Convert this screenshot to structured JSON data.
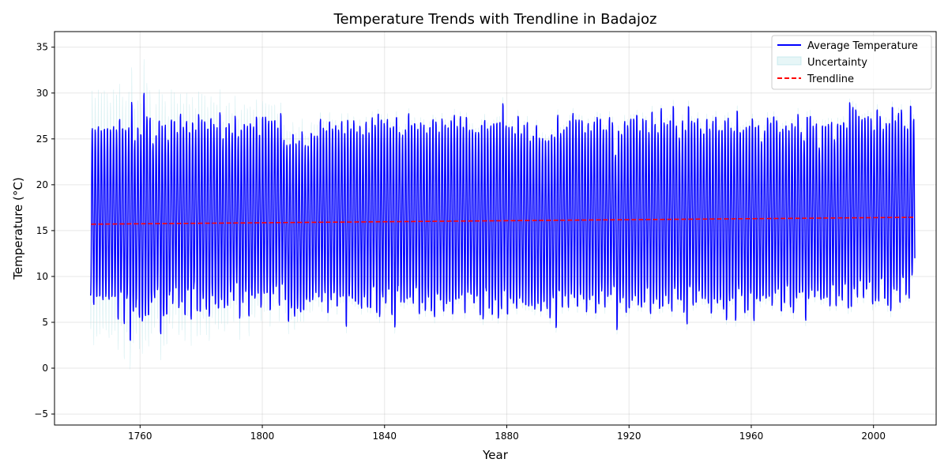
{
  "chart_data": {
    "type": "line",
    "title": "Temperature Trends with Trendline in Badajoz",
    "xlabel": "Year",
    "ylabel": "Temperature (°C)",
    "xlim": [
      1732,
      2020.5
    ],
    "ylim": [
      -6.2,
      36.7
    ],
    "x_ticks": [
      1760,
      1800,
      1840,
      1880,
      1920,
      1960,
      2000
    ],
    "y_ticks": [
      -5,
      0,
      5,
      10,
      15,
      20,
      25,
      30,
      35
    ],
    "x_tick_labels": [
      "1760",
      "1800",
      "1840",
      "1880",
      "1920",
      "1960",
      "2000"
    ],
    "y_tick_labels": [
      "−5",
      "0",
      "5",
      "10",
      "15",
      "20",
      "25",
      "30",
      "35"
    ],
    "grid": true,
    "legend_position": "top-right",
    "series": [
      {
        "name": "Average Temperature",
        "style": "line",
        "color": "#0000ff",
        "description_of_data": "monthly mean temperature, oscillating seasonally",
        "x_start": 1743.8,
        "x_end": 2013.6,
        "yearly_max_approx": [
          26.2,
          26.3,
          26.3,
          26.2,
          26.3,
          26.3,
          26.3,
          26.3,
          26.3,
          27.3,
          26.4,
          26.3,
          26.2,
          29.4,
          24.9,
          26.5,
          25.8,
          30.1,
          27.8,
          27.3,
          24.8,
          25.6,
          27.1,
          26.8,
          26.5,
          25.2,
          27.2,
          27.2,
          26.0,
          27.7,
          26.6,
          27.0,
          26.0,
          27.1,
          26.0,
          28.0,
          27.1,
          27.2,
          26.4,
          27.4,
          26.9,
          26.2,
          28.2,
          25.2,
          26.5,
          27.0,
          25.6,
          27.8,
          25.3,
          26.3,
          26.9,
          26.4,
          27.0,
          26.3,
          27.7,
          25.7,
          27.5,
          27.7,
          26.9,
          27.3,
          27.2,
          26.4,
          28.1,
          24.8,
          24.6,
          24.5,
          25.8,
          24.8,
          24.8,
          26.1,
          24.3,
          24.5,
          25.9,
          25.4,
          25.6,
          27.1,
          26.5,
          26.1,
          27.1,
          26.4,
          26.4,
          26.3,
          27.0,
          25.9,
          27.4,
          26.1,
          27.3,
          25.8,
          26.7,
          25.8,
          26.9,
          26.0,
          27.3,
          26.8,
          28.0,
          27.3,
          27.0,
          27.1,
          26.5,
          26.5,
          27.7,
          26.0,
          25.4,
          26.3,
          27.8,
          26.8,
          27.0,
          26.1,
          27.1,
          26.5,
          26.0,
          26.5,
          27.3,
          27.2,
          25.7,
          27.5,
          26.7,
          26.5,
          27.3,
          27.6,
          26.7,
          27.5,
          26.6,
          27.7,
          26.0,
          26.3,
          25.7,
          26.0,
          26.8,
          27.2,
          26.4,
          26.4,
          27.0,
          26.9,
          27.1,
          29.2,
          26.4,
          26.6,
          26.4,
          25.9,
          27.8,
          25.6,
          26.8,
          26.8,
          25.1,
          25.6,
          26.6,
          25.4,
          25.0,
          25.1,
          25.0,
          25.7,
          25.5,
          27.6,
          25.9,
          26.1,
          26.6,
          27.3,
          27.8,
          27.4,
          27.1,
          27.3,
          26.0,
          26.8,
          26.2,
          26.8,
          27.7,
          27.4,
          26.2,
          26.3,
          27.3,
          27.1,
          23.3,
          26.2,
          25.8,
          26.9,
          26.8,
          27.2,
          27.5,
          27.9,
          26.0,
          27.5,
          27.0,
          26.0,
          28.2,
          26.8,
          26.0,
          28.3,
          27.1,
          26.7,
          27.3,
          28.9,
          26.4,
          25.4,
          27.0,
          26.3,
          28.9,
          27.0,
          27.1,
          27.2,
          26.4,
          25.8,
          27.3,
          26.4,
          26.9,
          27.7,
          26.1,
          26.2,
          27.3,
          27.3,
          26.5,
          25.9,
          28.4,
          26.0,
          26.0,
          26.6,
          26.4,
          27.5,
          26.6,
          26.6,
          25.0,
          25.8,
          27.6,
          26.9,
          27.7,
          27.3,
          25.7,
          26.4,
          26.5,
          26.2,
          27.0,
          26.4,
          28.0,
          25.7,
          25.1,
          27.7,
          27.6,
          26.7,
          26.6,
          24.3,
          26.6,
          26.6,
          26.9,
          26.8,
          25.2,
          26.7,
          26.8,
          27.1,
          26.2,
          29.3,
          28.5,
          28.5,
          27.8,
          27.2,
          27.6,
          27.4,
          27.5,
          26.2,
          28.4,
          27.8,
          26.0,
          27.0,
          26.8,
          28.8,
          27.3,
          27.8,
          28.5,
          26.4,
          26.4,
          28.9,
          27.2,
          27.3,
          28.1
        ],
        "yearly_min_approx": [
          7.6,
          6.9,
          7.5,
          7.5,
          7.5,
          7.5,
          7.5,
          7.5,
          7.5,
          5.7,
          7.5,
          4.8,
          7.5,
          4.3,
          3.7,
          7.8,
          5.2,
          6.9,
          4.4,
          5.2,
          5.6,
          8.1,
          9.0,
          3.5,
          5.2,
          4.9,
          9.3,
          6.7,
          8.2,
          7.1,
          6.4,
          5.8,
          7.7,
          5.9,
          8.3,
          7.1,
          5.4,
          7.3,
          6.0,
          5.8,
          7.6,
          6.3,
          7.2,
          5.9,
          6.9,
          7.1,
          7.3,
          8.2,
          7.9,
          5.6,
          7.5,
          7.8,
          5.8,
          7.3,
          8.0,
          7.2,
          7.2,
          8.2,
          7.5,
          6.2,
          8.0,
          8.2,
          7.7,
          7.2,
          7.1,
          4.9,
          6.9,
          5.2,
          6.2,
          6.6,
          5.2,
          7.3,
          8.0,
          6.9,
          8.3,
          8.2,
          6.6,
          8.0,
          6.2,
          7.1,
          7.9,
          6.4,
          8.0,
          7.0,
          5.3,
          6.9,
          8.0,
          6.3,
          7.1,
          6.1,
          8.0,
          6.1,
          6.9,
          8.3,
          6.6,
          4.9,
          7.6,
          6.8,
          8.0,
          5.7,
          4.7,
          8.2,
          6.6,
          7.4,
          8.1,
          6.9,
          7.2,
          8.0,
          6.3,
          6.5,
          5.7,
          8.0,
          6.3,
          5.5,
          7.0,
          8.0,
          5.7,
          6.6,
          7.7,
          5.7,
          6.8,
          7.8,
          7.2,
          6.6,
          7.1,
          8.1,
          6.5,
          7.7,
          6.2,
          5.2,
          8.0,
          6.2,
          5.8,
          7.3,
          5.2,
          7.5,
          6.7,
          5.7,
          7.3,
          6.5,
          7.5,
          6.2,
          7.6,
          6.6,
          5.6,
          7.1,
          6.6,
          6.4,
          5.7,
          7.0,
          6.4,
          5.5,
          7.6,
          5.1,
          7.3,
          6.6,
          7.8,
          7.0,
          8.0,
          7.3,
          6.3,
          7.8,
          6.9,
          6.2,
          7.1,
          7.9,
          6.1,
          6.8,
          7.5,
          6.7,
          8.0,
          7.6,
          6.9,
          5.3,
          7.0,
          7.9,
          5.8,
          6.5,
          7.2,
          8.1,
          5.6,
          7.3,
          6.6,
          7.9,
          7.0,
          6.0,
          7.1,
          7.3,
          5.8,
          7.6,
          7.0,
          7.0,
          7.1,
          6.8,
          8.0,
          5.4,
          6.1,
          7.6,
          6.8,
          6.9,
          7.7,
          7.3,
          8.0,
          6.6,
          5.9,
          7.6,
          6.2,
          7.2,
          7.0,
          4.9,
          6.7,
          7.1,
          6.1,
          7.5,
          7.6,
          6.2,
          5.9,
          8.4,
          4.7,
          7.3,
          6.5,
          8.0,
          8.2,
          7.4,
          6.9,
          8.0,
          7.5,
          6.3,
          7.0,
          8.5,
          7.1,
          5.4,
          8.3,
          6.8,
          7.7,
          6.5,
          7.2,
          8.0,
          7.4,
          7.0,
          8.6,
          7.3,
          7.9,
          6.4,
          8.0,
          7.4,
          7.6,
          7.6,
          8.4,
          7.9,
          6.0,
          8.3,
          7.4,
          8.9,
          7.8,
          8.2,
          9.1,
          6.3,
          8.1,
          7.0,
          8.6,
          7.8,
          6.6,
          6.9,
          7.9,
          8.4,
          7.3,
          8.6,
          7.7,
          8.9,
          9.0
        ]
      },
      {
        "name": "Uncertainty",
        "style": "band",
        "color": "#b0e0e6",
        "description_of_data": "confidence band around monthly temperature; wide before ~1830, narrow afterwards",
        "early_halfwidth_approx": 2.5,
        "late_halfwidth_approx": 0.4,
        "transition_year": 1830
      },
      {
        "name": "Trendline",
        "style": "dashed",
        "color": "#ff0000",
        "x": [
          1744,
          2013
        ],
        "y": [
          15.7,
          16.45
        ]
      }
    ]
  }
}
